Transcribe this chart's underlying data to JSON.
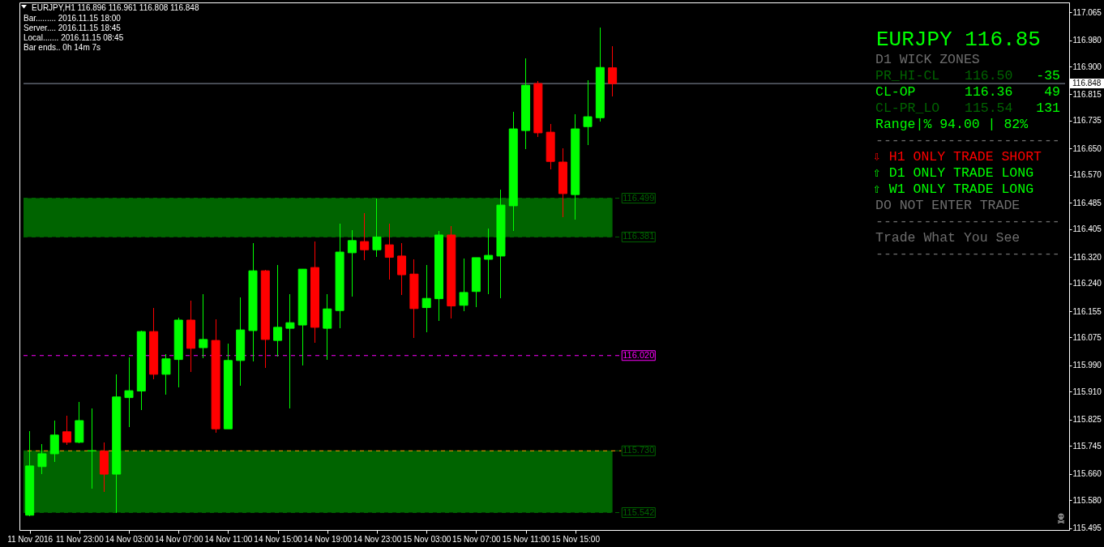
{
  "chart_data": {
    "type": "candlestick",
    "title": "EURJPY,H1  116.896 116.961 116.808 116.848",
    "categories": [
      "11 Nov 2016",
      null,
      null,
      null,
      "11 Nov 23:00",
      null,
      null,
      null,
      "14 Nov 03:00",
      null,
      null,
      null,
      "14 Nov 07:00",
      null,
      null,
      null,
      "14 Nov 11:00",
      null,
      null,
      null,
      "14 Nov 15:00",
      null,
      null,
      null,
      "14 Nov 19:00",
      null,
      null,
      null,
      "14 Nov 23:00",
      null,
      null,
      null,
      "15 Nov 03:00",
      null,
      null,
      null,
      "15 Nov 07:00",
      null,
      null,
      null,
      "15 Nov 11:00",
      null,
      null,
      null,
      "15 Nov 15:00",
      null,
      null,
      null,
      null,
      null,
      null,
      null,
      null,
      null,
      null,
      null,
      null,
      null,
      null,
      null,
      null,
      null,
      null,
      null,
      null,
      null,
      null,
      null,
      null,
      null,
      null,
      null,
      null,
      null,
      null,
      null,
      null,
      null,
      null,
      null,
      null,
      null,
      null,
      null
    ],
    "ohlc": [
      [
        115.534,
        115.791,
        115.53,
        115.684
      ],
      [
        115.682,
        115.751,
        115.659,
        115.721
      ],
      [
        115.721,
        115.822,
        115.696,
        115.778
      ],
      [
        115.788,
        115.837,
        115.748,
        115.756
      ],
      [
        115.756,
        115.879,
        115.754,
        115.822
      ],
      [
        115.73,
        115.859,
        115.616,
        115.73
      ],
      [
        115.729,
        115.756,
        115.606,
        115.659
      ],
      [
        115.659,
        115.963,
        115.542,
        115.894
      ],
      [
        115.892,
        116.014,
        115.803,
        115.913
      ],
      [
        115.912,
        116.096,
        115.855,
        116.093
      ],
      [
        116.093,
        116.165,
        115.949,
        115.963
      ],
      [
        115.963,
        116.024,
        115.902,
        116.01
      ],
      [
        116.008,
        116.135,
        115.922,
        116.128
      ],
      [
        116.128,
        116.187,
        115.971,
        116.042
      ],
      [
        116.044,
        116.207,
        116.013,
        116.069
      ],
      [
        116.066,
        116.13,
        115.786,
        115.797
      ],
      [
        115.797,
        116.056,
        115.797,
        116.005
      ],
      [
        116.005,
        116.197,
        115.928,
        116.098
      ],
      [
        116.096,
        116.362,
        116.002,
        116.278
      ],
      [
        116.278,
        116.281,
        115.983,
        116.069
      ],
      [
        116.066,
        116.296,
        116.017,
        116.106
      ],
      [
        116.103,
        116.207,
        115.859,
        116.12
      ],
      [
        116.113,
        116.283,
        115.99,
        116.283
      ],
      [
        116.288,
        116.367,
        116.059,
        116.106
      ],
      [
        116.103,
        116.207,
        116.007,
        116.162
      ],
      [
        116.157,
        116.421,
        116.103,
        116.335
      ],
      [
        116.333,
        116.402,
        116.199,
        116.37
      ],
      [
        116.367,
        116.453,
        116.31,
        116.342
      ],
      [
        116.342,
        116.499,
        116.32,
        116.381
      ],
      [
        116.357,
        116.421,
        116.251,
        116.319
      ],
      [
        116.323,
        116.362,
        116.205,
        116.266
      ],
      [
        116.268,
        116.313,
        116.074,
        116.163
      ],
      [
        116.166,
        116.296,
        116.092,
        116.194
      ],
      [
        116.193,
        116.399,
        116.126,
        116.387
      ],
      [
        116.387,
        116.414,
        116.134,
        116.171
      ],
      [
        116.173,
        116.315,
        116.156,
        116.212
      ],
      [
        116.215,
        116.318,
        116.168,
        116.318
      ],
      [
        116.313,
        116.407,
        116.208,
        116.325
      ],
      [
        116.323,
        116.525,
        116.195,
        116.478
      ],
      [
        116.476,
        116.762,
        116.399,
        116.71
      ],
      [
        116.705,
        116.924,
        116.648,
        116.843
      ],
      [
        116.848,
        116.855,
        116.685,
        116.698
      ],
      [
        116.7,
        116.725,
        116.587,
        116.611
      ],
      [
        116.609,
        116.651,
        116.441,
        116.513
      ],
      [
        116.51,
        116.754,
        116.434,
        116.71
      ],
      [
        116.717,
        116.858,
        116.661,
        116.747
      ],
      [
        116.744,
        117.018,
        116.732,
        116.897
      ],
      [
        116.896,
        116.961,
        116.808,
        116.848
      ],
      null,
      null,
      null,
      null,
      null,
      null,
      null,
      null,
      null,
      null,
      null,
      null,
      null,
      null,
      null,
      null,
      null,
      null,
      null,
      null,
      null,
      null,
      null,
      null,
      null,
      null,
      null,
      null,
      null,
      null,
      null,
      null,
      null,
      null,
      null,
      null
    ],
    "colors": [
      "#00ff00",
      "#00ff00",
      "#00ff00",
      "#ff0000",
      "#00ff00",
      "#00ff00",
      "#ff0000",
      "#00ff00",
      "#00ff00",
      "#00ff00",
      "#ff0000",
      "#00ff00",
      "#00ff00",
      "#ff0000",
      "#00ff00",
      "#ff0000",
      "#00ff00",
      "#00ff00",
      "#00ff00",
      "#ff0000",
      "#00ff00",
      "#00ff00",
      "#00ff00",
      "#ff0000",
      "#00ff00",
      "#00ff00",
      "#00ff00",
      "#ff0000",
      "#00ff00",
      "#ff0000",
      "#ff0000",
      "#ff0000",
      "#00ff00",
      "#00ff00",
      "#ff0000",
      "#00ff00",
      "#00ff00",
      "#00ff00",
      "#00ff00",
      "#00ff00",
      "#00ff00",
      "#ff0000",
      "#ff0000",
      "#ff0000",
      "#00ff00",
      "#00ff00",
      "#00ff00",
      "#ff0000",
      null,
      null,
      null,
      null,
      null,
      null,
      null,
      null,
      null,
      null,
      null,
      null,
      null,
      null,
      null,
      null,
      null,
      null,
      null,
      null,
      null,
      null,
      null,
      null,
      null,
      null,
      null,
      null,
      null,
      null,
      null,
      null,
      null,
      null,
      null,
      null
    ],
    "ylim": [
      115.489,
      117.095
    ],
    "yticks": [
      117.065,
      {
        "value": 116.98,
        "label": "116.980"
      },
      {
        "value": 116.9,
        "label": "116.900"
      },
      116.815,
      116.735,
      {
        "value": 116.65,
        "label": "116.650"
      },
      {
        "value": 116.57,
        "label": "116.570"
      },
      116.485,
      116.405,
      {
        "value": 116.32,
        "label": "116.320"
      },
      {
        "value": 116.24,
        "label": "116.240"
      },
      116.155,
      116.075,
      {
        "value": 115.99,
        "label": "115.990"
      },
      {
        "value": 115.91,
        "label": "115.910"
      },
      115.825,
      115.745,
      {
        "value": 115.66,
        "label": "115.660"
      },
      {
        "value": 115.58,
        "label": "115.580"
      },
      115.495
    ],
    "bands": [
      {
        "axis": "y",
        "from": 116.381,
        "to": 116.499,
        "color": "#006400"
      },
      {
        "axis": "y",
        "from": 115.542,
        "to": 115.73,
        "color": "#006400"
      }
    ],
    "ref_lines": [
      {
        "axis": "y",
        "value": 116.848,
        "label": "116.848",
        "color": "#8c96a5",
        "line_style": "solid"
      },
      {
        "axis": "y",
        "value": 116.499,
        "label": "116.499",
        "color": "#006400",
        "line_style": "dashed"
      },
      {
        "axis": "y",
        "value": 116.381,
        "label": "116.381",
        "color": "#006400",
        "line_style": "dashed"
      },
      {
        "axis": "y",
        "value": 116.02,
        "label": "116.020",
        "color": "#ff00ff",
        "line_style": "dashed"
      },
      {
        "axis": "y",
        "value": 115.73,
        "label": "115.730",
        "color": "#006400",
        "line_style": "dashed"
      },
      {
        "axis": "y",
        "value": 115.73,
        "color": "#ffa500",
        "line_style": "dashed"
      },
      {
        "axis": "y",
        "value": 115.542,
        "label": "115.542",
        "color": "#006400",
        "line_style": "dashed"
      }
    ],
    "annotations": [
      "Bar......... 2016.11.15 18:00",
      "Server.... 2016.11.15 18:45",
      "Local....... 2016.11.15 08:45",
      "Bar ends.. 0h 14m 7s",
      "EURJPY 116.85",
      "D1 WICK ZONES",
      "PR_HI-CL",
      "116.50",
      "-35",
      "CL-OP",
      "116.36",
      "49",
      "CL-PR_LO",
      "115.54",
      "131",
      "Range|% 94.00 | 82%",
      "-----------------------",
      "⇩ H1 ONLY TRADE SHORT",
      "⇧ D1 ONLY TRADE LONG",
      "⇧ W1 ONLY TRADE LONG",
      "DO NOT ENTER TRADE",
      "-----------------------",
      "Trade What You See",
      "-----------------------"
    ]
  }
}
